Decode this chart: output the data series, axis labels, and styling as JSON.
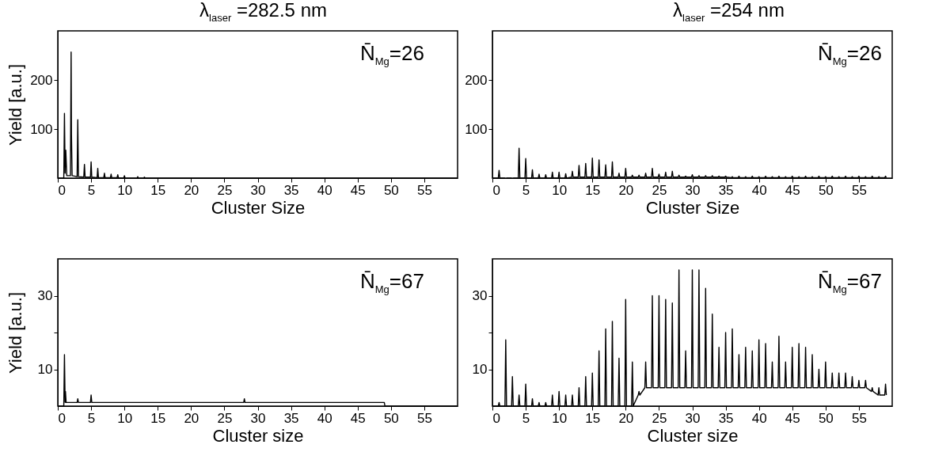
{
  "chart_data": [
    {
      "type": "line",
      "title": "λ$_{laser}$ =282.5 nm",
      "xlabel": "Cluster Size",
      "ylabel": "Yield [a.u.]",
      "annotations": [
        "N̄$_{Mg}$=26"
      ],
      "xlim": [
        0,
        60
      ],
      "ylim": [
        0,
        300
      ],
      "xticks": [
        0,
        5,
        10,
        15,
        20,
        25,
        30,
        35,
        40,
        45,
        50,
        55
      ],
      "yticks": [
        100,
        200
      ],
      "series": [
        {
          "color": "#000000",
          "x": [
            0,
            0.9,
            1,
            1.1,
            1.2,
            1.35,
            1.9,
            2,
            2.05,
            2.15,
            2.9,
            3,
            3.1,
            3.9,
            4,
            4.1,
            4.9,
            5,
            5.1,
            5.9,
            6,
            6.1,
            6.9,
            7,
            7.1,
            7.9,
            8,
            8.1,
            8.9,
            9,
            9.1,
            9.9,
            10,
            10.1,
            11.9,
            12,
            12.1,
            12.9,
            13,
            13.1,
            60
          ],
          "values": [
            0,
            0,
            132,
            10,
            57,
            5,
            5,
            257,
            90,
            5,
            3,
            119,
            3,
            2,
            28,
            2,
            2,
            33,
            2,
            1,
            20,
            1,
            1,
            10,
            1,
            1,
            8,
            1,
            1,
            7,
            1,
            0,
            5,
            0,
            0,
            3,
            0,
            0,
            2,
            0,
            0
          ]
        }
      ]
    },
    {
      "type": "line",
      "title": "λ$_{laser}$ =254 nm",
      "xlabel": "Cluster Size",
      "annotations": [
        "N̄$_{Mg}$=26"
      ],
      "xlim": [
        0,
        60
      ],
      "ylim": [
        0,
        300
      ],
      "xticks": [
        0,
        5,
        10,
        15,
        20,
        25,
        30,
        35,
        40,
        45,
        50,
        55
      ],
      "yticks": [
        100,
        200
      ],
      "series": [
        {
          "color": "#000000",
          "x": [
            0,
            0.88,
            1,
            1.12,
            1.88,
            2,
            2.12,
            2.88,
            3,
            3.12,
            3.88,
            4,
            4.12,
            4.88,
            5,
            5.12,
            5.88,
            6,
            6.12,
            6.88,
            7,
            7.12,
            7.88,
            8,
            8.12,
            8.88,
            9,
            9.12,
            9.88,
            10,
            10.12,
            10.88,
            11,
            11.12,
            11.88,
            12,
            12.12,
            12.88,
            13,
            13.12,
            13.88,
            14,
            14.12,
            14.88,
            15,
            15.12,
            15.88,
            16,
            16.12,
            16.88,
            17,
            17.12,
            17.88,
            18,
            18.12,
            18.88,
            19,
            19.12,
            19.88,
            20,
            20.12,
            20.88,
            21,
            21.12,
            21.88,
            22,
            22.12,
            22.88,
            23,
            23.12,
            23.88,
            24,
            24.12,
            24.88,
            25,
            25.12,
            25.88,
            26,
            26.12,
            26.88,
            27,
            27.12,
            27.88,
            28,
            28.12,
            28.88,
            29,
            29.12,
            29.88,
            30,
            30.12,
            30.88,
            31,
            31.12,
            31.88,
            32,
            32.12,
            32.88,
            33,
            33.12,
            33.88,
            34,
            34.12,
            34.88,
            35,
            35.12,
            35.88,
            36,
            36.12,
            36.88,
            37,
            37.12,
            37.88,
            38,
            38.12,
            38.88,
            39,
            39.12,
            39.88,
            40,
            40.12,
            40.88,
            41,
            41.12,
            41.88,
            42,
            42.12,
            42.88,
            43,
            43.12,
            43.88,
            44,
            44.12,
            44.88,
            45,
            45.12,
            45.88,
            46,
            46.12,
            46.88,
            47,
            47.12,
            47.88,
            48,
            48.12,
            48.88,
            49,
            49.12,
            49.88,
            50,
            50.12,
            50.88,
            51,
            51.12,
            51.88,
            52,
            52.12,
            52.88,
            53,
            53.12,
            53.88,
            54,
            54.12,
            54.88,
            55,
            55.12,
            55.88,
            56,
            56.12,
            56.88,
            57,
            57.12,
            57.88,
            58,
            58.12,
            58.88,
            59,
            59.12
          ],
          "values": [
            0,
            0,
            16,
            0,
            0,
            null,
            0,
            0,
            null,
            0,
            0,
            61,
            0,
            0,
            40,
            0,
            0,
            17,
            0,
            0,
            8,
            0,
            0,
            7,
            0,
            0,
            12,
            0,
            0,
            12,
            0,
            0,
            9,
            0,
            2,
            14,
            2,
            2,
            26,
            2,
            2,
            30,
            2,
            2,
            41,
            2,
            2,
            37,
            2,
            2,
            27,
            2,
            2,
            33,
            2,
            2,
            10,
            2,
            2,
            20,
            2,
            2,
            6,
            2,
            2,
            6,
            2,
            2,
            10,
            2,
            2,
            20,
            2,
            2,
            8,
            2,
            2,
            12,
            2,
            2,
            14,
            2,
            2,
            6,
            2,
            2,
            4,
            2,
            2,
            7,
            2,
            2,
            5,
            2,
            2,
            5,
            2,
            2,
            5,
            2,
            2,
            4,
            2,
            2,
            4,
            2,
            1,
            3,
            1,
            1,
            4,
            1,
            1,
            3,
            1,
            1,
            4,
            1,
            1,
            3,
            1,
            1,
            4,
            1,
            1,
            3,
            1,
            1,
            4,
            1,
            1,
            3,
            1,
            1,
            4,
            1,
            1,
            3,
            1,
            1,
            4,
            1,
            1,
            3,
            1,
            1,
            4,
            1,
            1,
            3,
            1,
            1,
            4,
            1,
            1,
            3,
            1,
            1,
            4,
            1,
            1,
            3,
            1,
            1,
            4,
            1,
            1,
            3,
            1,
            1,
            4,
            1,
            1,
            3,
            1,
            1,
            4,
            1
          ]
        }
      ]
    },
    {
      "type": "line",
      "xlabel": "Cluster size",
      "ylabel": "Yield [a.u.]",
      "annotations": [
        "N̄$_{Mg}$=67"
      ],
      "xlim": [
        0,
        60
      ],
      "ylim": [
        0,
        40
      ],
      "xticks": [
        0,
        5,
        10,
        15,
        20,
        25,
        30,
        35,
        40,
        45,
        50,
        55
      ],
      "yticks": [
        10,
        {
          "value": 20,
          "label": null
        },
        30
      ],
      "series": [
        {
          "color": "#000000",
          "x": [
            0,
            0.9,
            1,
            1.1,
            1.15,
            1.25,
            2.9,
            3,
            3.1,
            4.9,
            5,
            5.1,
            27.9,
            28,
            28.1,
            49,
            49.1,
            60
          ],
          "values": [
            0,
            0,
            14,
            1,
            4,
            1,
            1,
            2,
            1,
            1,
            3,
            1,
            1,
            2,
            1,
            1,
            0,
            0
          ]
        }
      ]
    },
    {
      "type": "line",
      "xlabel": "Cluster size",
      "annotations": [
        "N̄$_{Mg}$=67"
      ],
      "xlim": [
        0,
        60
      ],
      "ylim": [
        0,
        40
      ],
      "xticks": [
        0,
        5,
        10,
        15,
        20,
        25,
        30,
        35,
        40,
        45,
        50,
        55
      ],
      "yticks": [
        10,
        {
          "value": 20,
          "label": null
        },
        30
      ],
      "series": [
        {
          "color": "#000000",
          "x": [
            0,
            0.88,
            1,
            1.12,
            1.88,
            2,
            2.12,
            2.88,
            3,
            3.12,
            3.88,
            4,
            4.12,
            4.88,
            5,
            5.12,
            5.88,
            6,
            6.12,
            6.88,
            7,
            7.12,
            7.88,
            8,
            8.12,
            8.88,
            9,
            9.12,
            9.88,
            10,
            10.12,
            10.88,
            11,
            11.12,
            11.88,
            12,
            12.12,
            12.88,
            13,
            13.12,
            13.88,
            14,
            14.12,
            14.88,
            15,
            15.12,
            15.88,
            16,
            16.12,
            16.88,
            17,
            17.12,
            17.88,
            18,
            18.12,
            18.88,
            19,
            19.12,
            19.88,
            20,
            20.12,
            20.88,
            21,
            21.12,
            21.88,
            22,
            22.12,
            22.88,
            23,
            23.12,
            23.88,
            24,
            24.12,
            24.88,
            25,
            25.12,
            25.88,
            26,
            26.12,
            26.88,
            27,
            27.12,
            27.88,
            28,
            28.12,
            28.88,
            29,
            29.12,
            29.88,
            30,
            30.12,
            30.88,
            31,
            31.12,
            31.88,
            32,
            32.12,
            32.88,
            33,
            33.12,
            33.88,
            34,
            34.12,
            34.88,
            35,
            35.12,
            35.88,
            36,
            36.12,
            36.88,
            37,
            37.12,
            37.88,
            38,
            38.12,
            38.88,
            39,
            39.12,
            39.88,
            40,
            40.12,
            40.88,
            41,
            41.12,
            41.88,
            42,
            42.12,
            42.88,
            43,
            43.12,
            43.88,
            44,
            44.12,
            44.88,
            45,
            45.12,
            45.88,
            46,
            46.12,
            46.88,
            47,
            47.12,
            47.88,
            48,
            48.12,
            48.88,
            49,
            49.12,
            49.88,
            50,
            50.12,
            50.88,
            51,
            51.12,
            51.88,
            52,
            52.12,
            52.88,
            53,
            53.12,
            53.88,
            54,
            54.12,
            54.88,
            55,
            55.12,
            55.88,
            56,
            56.12,
            56.88,
            57,
            57.12,
            57.88,
            58,
            58.12,
            58.88,
            59,
            59.12
          ],
          "values": [
            0,
            0,
            1,
            0,
            0,
            18,
            0,
            0,
            8,
            0,
            0,
            3,
            0,
            0,
            6,
            0,
            0,
            2,
            0,
            0,
            1,
            0,
            0,
            1,
            0,
            0,
            3,
            0,
            0,
            4,
            0,
            0,
            3,
            0,
            0,
            3,
            0,
            0,
            5,
            0,
            0,
            8,
            0,
            0,
            9,
            0,
            0,
            15,
            0,
            0,
            21,
            0,
            0,
            23,
            0,
            0,
            13,
            0,
            0,
            29,
            0,
            0,
            12,
            0,
            3,
            4,
            3,
            5,
            12,
            5,
            5,
            30,
            5,
            5,
            30,
            5,
            5,
            29,
            5,
            5,
            28,
            5,
            5,
            37,
            5,
            5,
            15,
            5,
            5,
            37,
            5,
            5,
            37,
            5,
            5,
            32,
            5,
            5,
            25,
            5,
            5,
            16,
            5,
            5,
            20,
            5,
            5,
            21,
            5,
            5,
            14,
            5,
            5,
            16,
            5,
            5,
            15,
            5,
            5,
            18,
            5,
            5,
            17,
            5,
            5,
            12,
            5,
            5,
            19,
            5,
            5,
            12,
            5,
            5,
            16,
            5,
            5,
            17,
            5,
            5,
            16,
            5,
            5,
            14,
            5,
            5,
            10,
            5,
            5,
            12,
            5,
            5,
            9,
            5,
            5,
            9,
            5,
            5,
            9,
            5,
            5,
            8,
            5,
            5,
            7,
            5,
            5,
            7,
            5,
            4,
            5,
            4,
            3,
            5,
            3,
            3,
            6,
            3
          ]
        }
      ]
    }
  ]
}
